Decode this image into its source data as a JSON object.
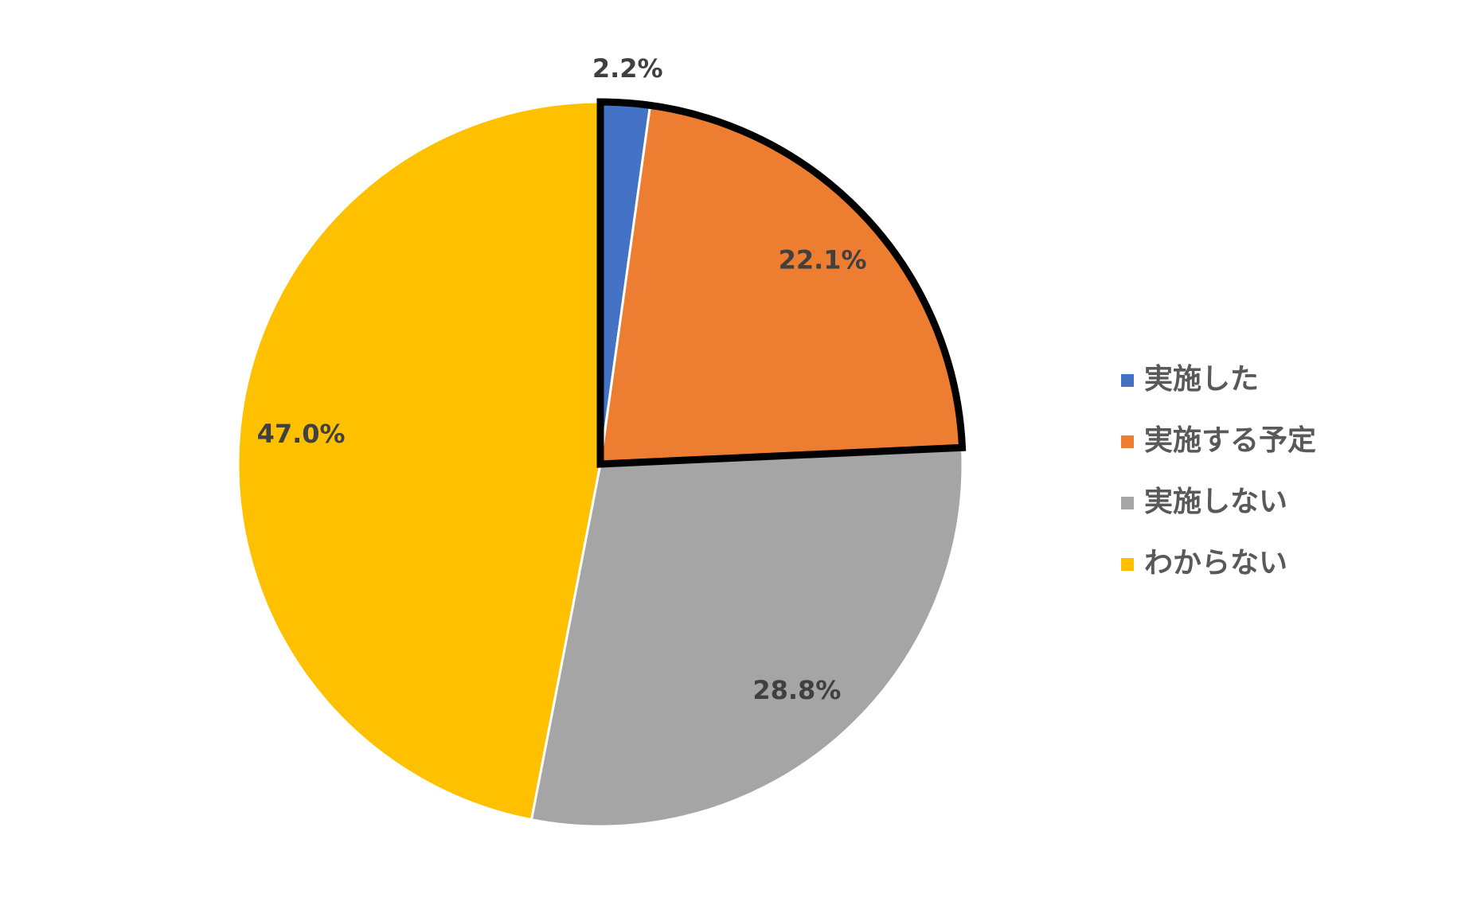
{
  "chart_data": {
    "type": "pie",
    "series": [
      {
        "categories": [
          "実施した",
          "実施する予定",
          "実施しない",
          "わからない"
        ],
        "values": [
          2.2,
          22.1,
          28.8,
          47.0
        ],
        "value_labels": [
          "2.2%",
          "22.1%",
          "28.8%",
          "47.0%"
        ],
        "colors": [
          "#4472c4",
          "#ed7d31",
          "#a5a5a5",
          "#ffc000"
        ]
      }
    ],
    "outline": [
      0,
      1
    ],
    "legend": "right"
  }
}
